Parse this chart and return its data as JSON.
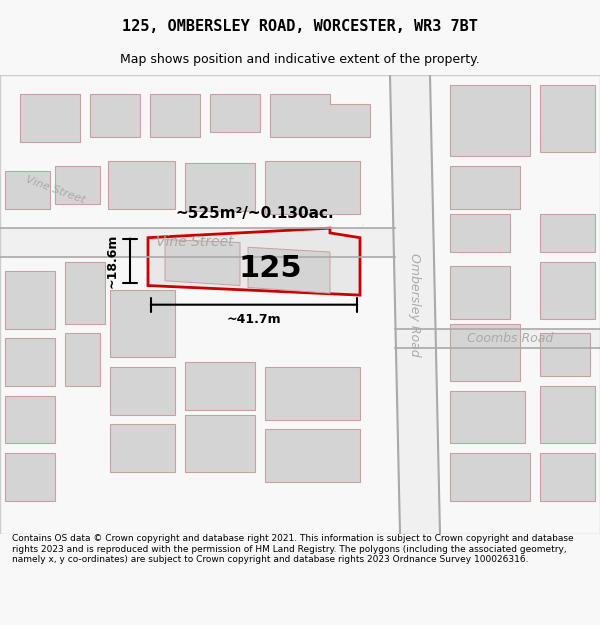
{
  "title": "125, OMBERSLEY ROAD, WORCESTER, WR3 7BT",
  "subtitle": "Map shows position and indicative extent of the property.",
  "footer": "Contains OS data © Crown copyright and database right 2021. This information is subject to Crown copyright and database rights 2023 and is reproduced with the permission of HM Land Registry. The polygons (including the associated geometry, namely x, y co-ordinates) are subject to Crown copyright and database rights 2023 Ordnance Survey 100026316.",
  "bg_color": "#f8f8f8",
  "map_bg": "#ffffff",
  "building_fill": "#d4d4d4",
  "building_edge": "#c8a0a0",
  "road_fill": "#ffffff",
  "road_edge": "#d08080",
  "highlight_fill": "#e8e8e8",
  "highlight_edge": "#cc0000",
  "street_label_color": "#999999",
  "label_125": "125",
  "area_label": "~525m²/~0.130ac.",
  "width_label": "~41.7m",
  "height_label": "~18.6m",
  "ombersley_road_label": "Ombersley Road",
  "vine_street_label1": "Vine Street",
  "vine_street_label2": "Vine Street",
  "coombs_road_label": "Coombs Road"
}
